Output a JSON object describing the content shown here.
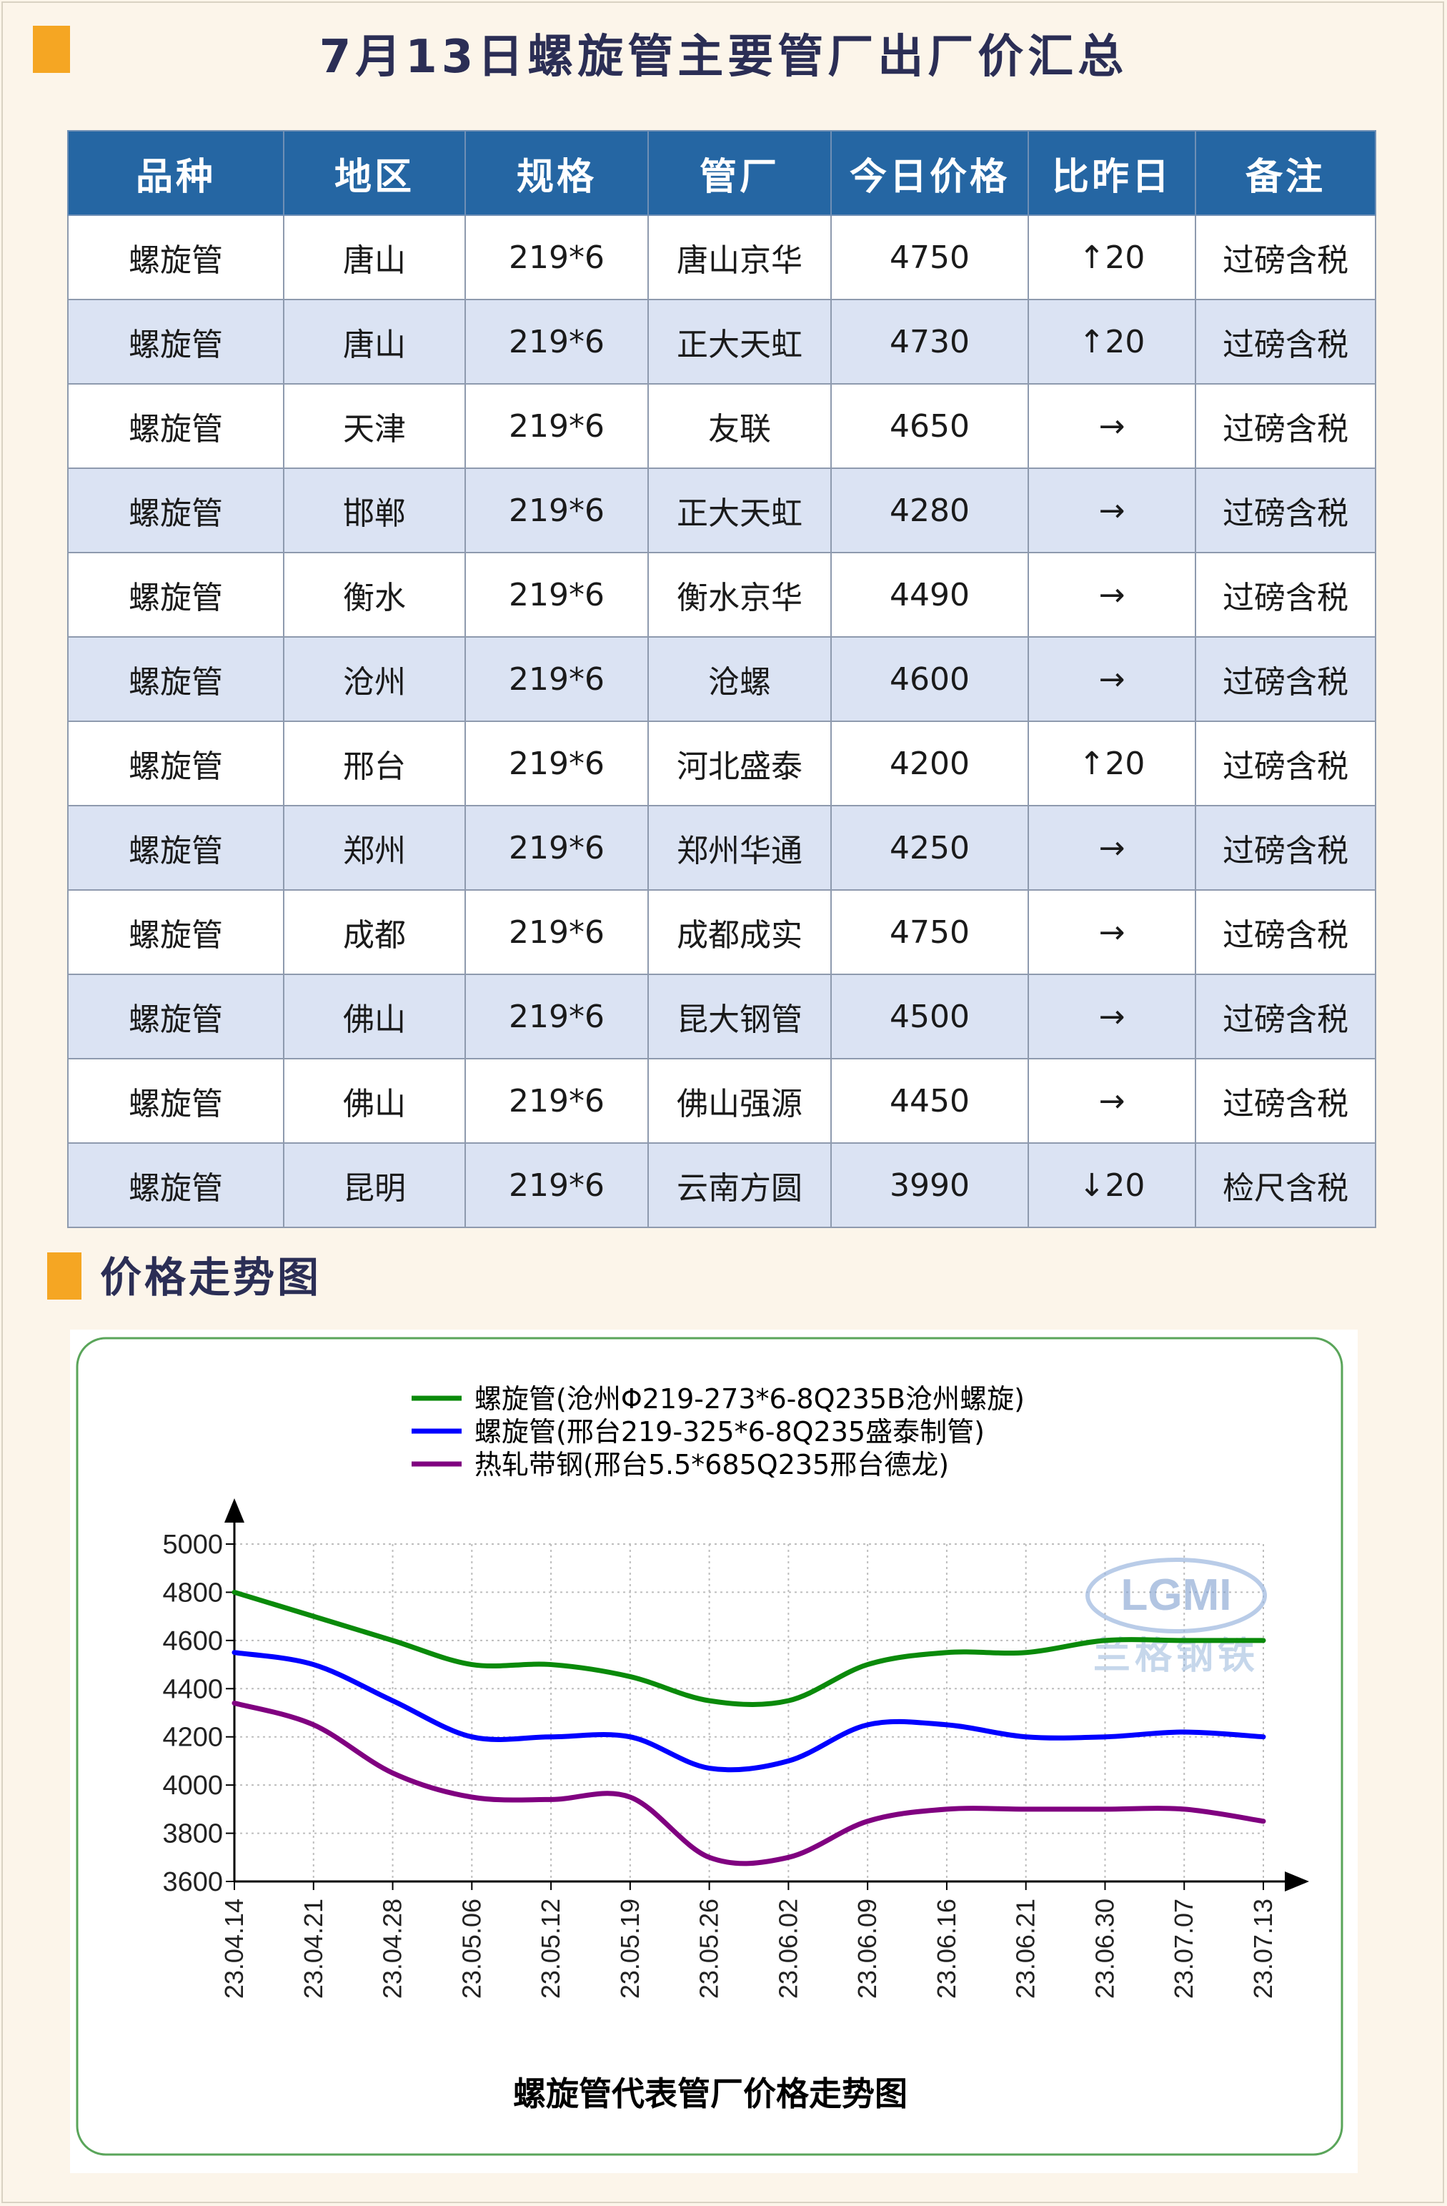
{
  "page_title": "7月13日螺旋管主要管厂出厂价汇总",
  "table": {
    "headers": [
      "品种",
      "地区",
      "规格",
      "管厂",
      "今日价格",
      "比昨日",
      "备注"
    ],
    "rows": [
      {
        "product": "螺旋管",
        "region": "唐山",
        "spec": "219*6",
        "mill": "唐山京华",
        "price": "4750",
        "change": "↑20",
        "trend": "up",
        "note": "过磅含税"
      },
      {
        "product": "螺旋管",
        "region": "唐山",
        "spec": "219*6",
        "mill": "正大天虹",
        "price": "4730",
        "change": "↑20",
        "trend": "up",
        "note": "过磅含税"
      },
      {
        "product": "螺旋管",
        "region": "天津",
        "spec": "219*6",
        "mill": "友联",
        "price": "4650",
        "change": "→",
        "trend": "flat",
        "note": "过磅含税"
      },
      {
        "product": "螺旋管",
        "region": "邯郸",
        "spec": "219*6",
        "mill": "正大天虹",
        "price": "4280",
        "change": "→",
        "trend": "flat",
        "note": "过磅含税"
      },
      {
        "product": "螺旋管",
        "region": "衡水",
        "spec": "219*6",
        "mill": "衡水京华",
        "price": "4490",
        "change": "→",
        "trend": "flat",
        "note": "过磅含税"
      },
      {
        "product": "螺旋管",
        "region": "沧州",
        "spec": "219*6",
        "mill": "沧螺",
        "price": "4600",
        "change": "→",
        "trend": "flat",
        "note": "过磅含税"
      },
      {
        "product": "螺旋管",
        "region": "邢台",
        "spec": "219*6",
        "mill": "河北盛泰",
        "price": "4200",
        "change": "↑20",
        "trend": "up",
        "note": "过磅含税"
      },
      {
        "product": "螺旋管",
        "region": "郑州",
        "spec": "219*6",
        "mill": "郑州华通",
        "price": "4250",
        "change": "→",
        "trend": "flat",
        "note": "过磅含税"
      },
      {
        "product": "螺旋管",
        "region": "成都",
        "spec": "219*6",
        "mill": "成都成实",
        "price": "4750",
        "change": "→",
        "trend": "flat",
        "note": "过磅含税"
      },
      {
        "product": "螺旋管",
        "region": "佛山",
        "spec": "219*6",
        "mill": "昆大钢管",
        "price": "4500",
        "change": "→",
        "trend": "flat",
        "note": "过磅含税"
      },
      {
        "product": "螺旋管",
        "region": "佛山",
        "spec": "219*6",
        "mill": "佛山强源",
        "price": "4450",
        "change": "→",
        "trend": "flat",
        "note": "过磅含税"
      },
      {
        "product": "螺旋管",
        "region": "昆明",
        "spec": "219*6",
        "mill": "云南方圆",
        "price": "3990",
        "change": "↓20",
        "trend": "down",
        "note": "检尺含税"
      }
    ]
  },
  "section_title": "价格走势图",
  "chart_data": {
    "type": "line",
    "title": "螺旋管代表管厂价格走势图",
    "watermark": {
      "logo": "LGMI",
      "text": "兰格钢铁"
    },
    "x": [
      "23.04.14",
      "23.04.21",
      "23.04.28",
      "23.05.06",
      "23.05.12",
      "23.05.19",
      "23.05.26",
      "23.06.02",
      "23.06.09",
      "23.06.16",
      "23.06.21",
      "23.06.30",
      "23.07.07",
      "23.07.13"
    ],
    "ylim": [
      3600,
      5000
    ],
    "yticks": [
      3600,
      3800,
      4000,
      4200,
      4400,
      4600,
      4800,
      5000
    ],
    "grid": true,
    "legend": "top",
    "series": [
      {
        "name": "螺旋管(沧州Φ219-273*6-8Q235B沧州螺旋)",
        "color": "#0a8a0a",
        "values": [
          4800,
          4700,
          4600,
          4500,
          4500,
          4450,
          4350,
          4350,
          4500,
          4550,
          4550,
          4600,
          4600,
          4600
        ]
      },
      {
        "name": "螺旋管(邢台219-325*6-8Q235盛泰制管)",
        "color": "#0000ff",
        "values": [
          4550,
          4500,
          4350,
          4200,
          4200,
          4200,
          4070,
          4100,
          4250,
          4250,
          4200,
          4200,
          4220,
          4200
        ]
      },
      {
        "name": "热轧带钢(邢台5.5*685Q235邢台德龙)",
        "color": "#800080",
        "values": [
          4340,
          4250,
          4050,
          3950,
          3940,
          3950,
          3700,
          3700,
          3850,
          3900,
          3900,
          3900,
          3900,
          3850
        ]
      }
    ]
  }
}
